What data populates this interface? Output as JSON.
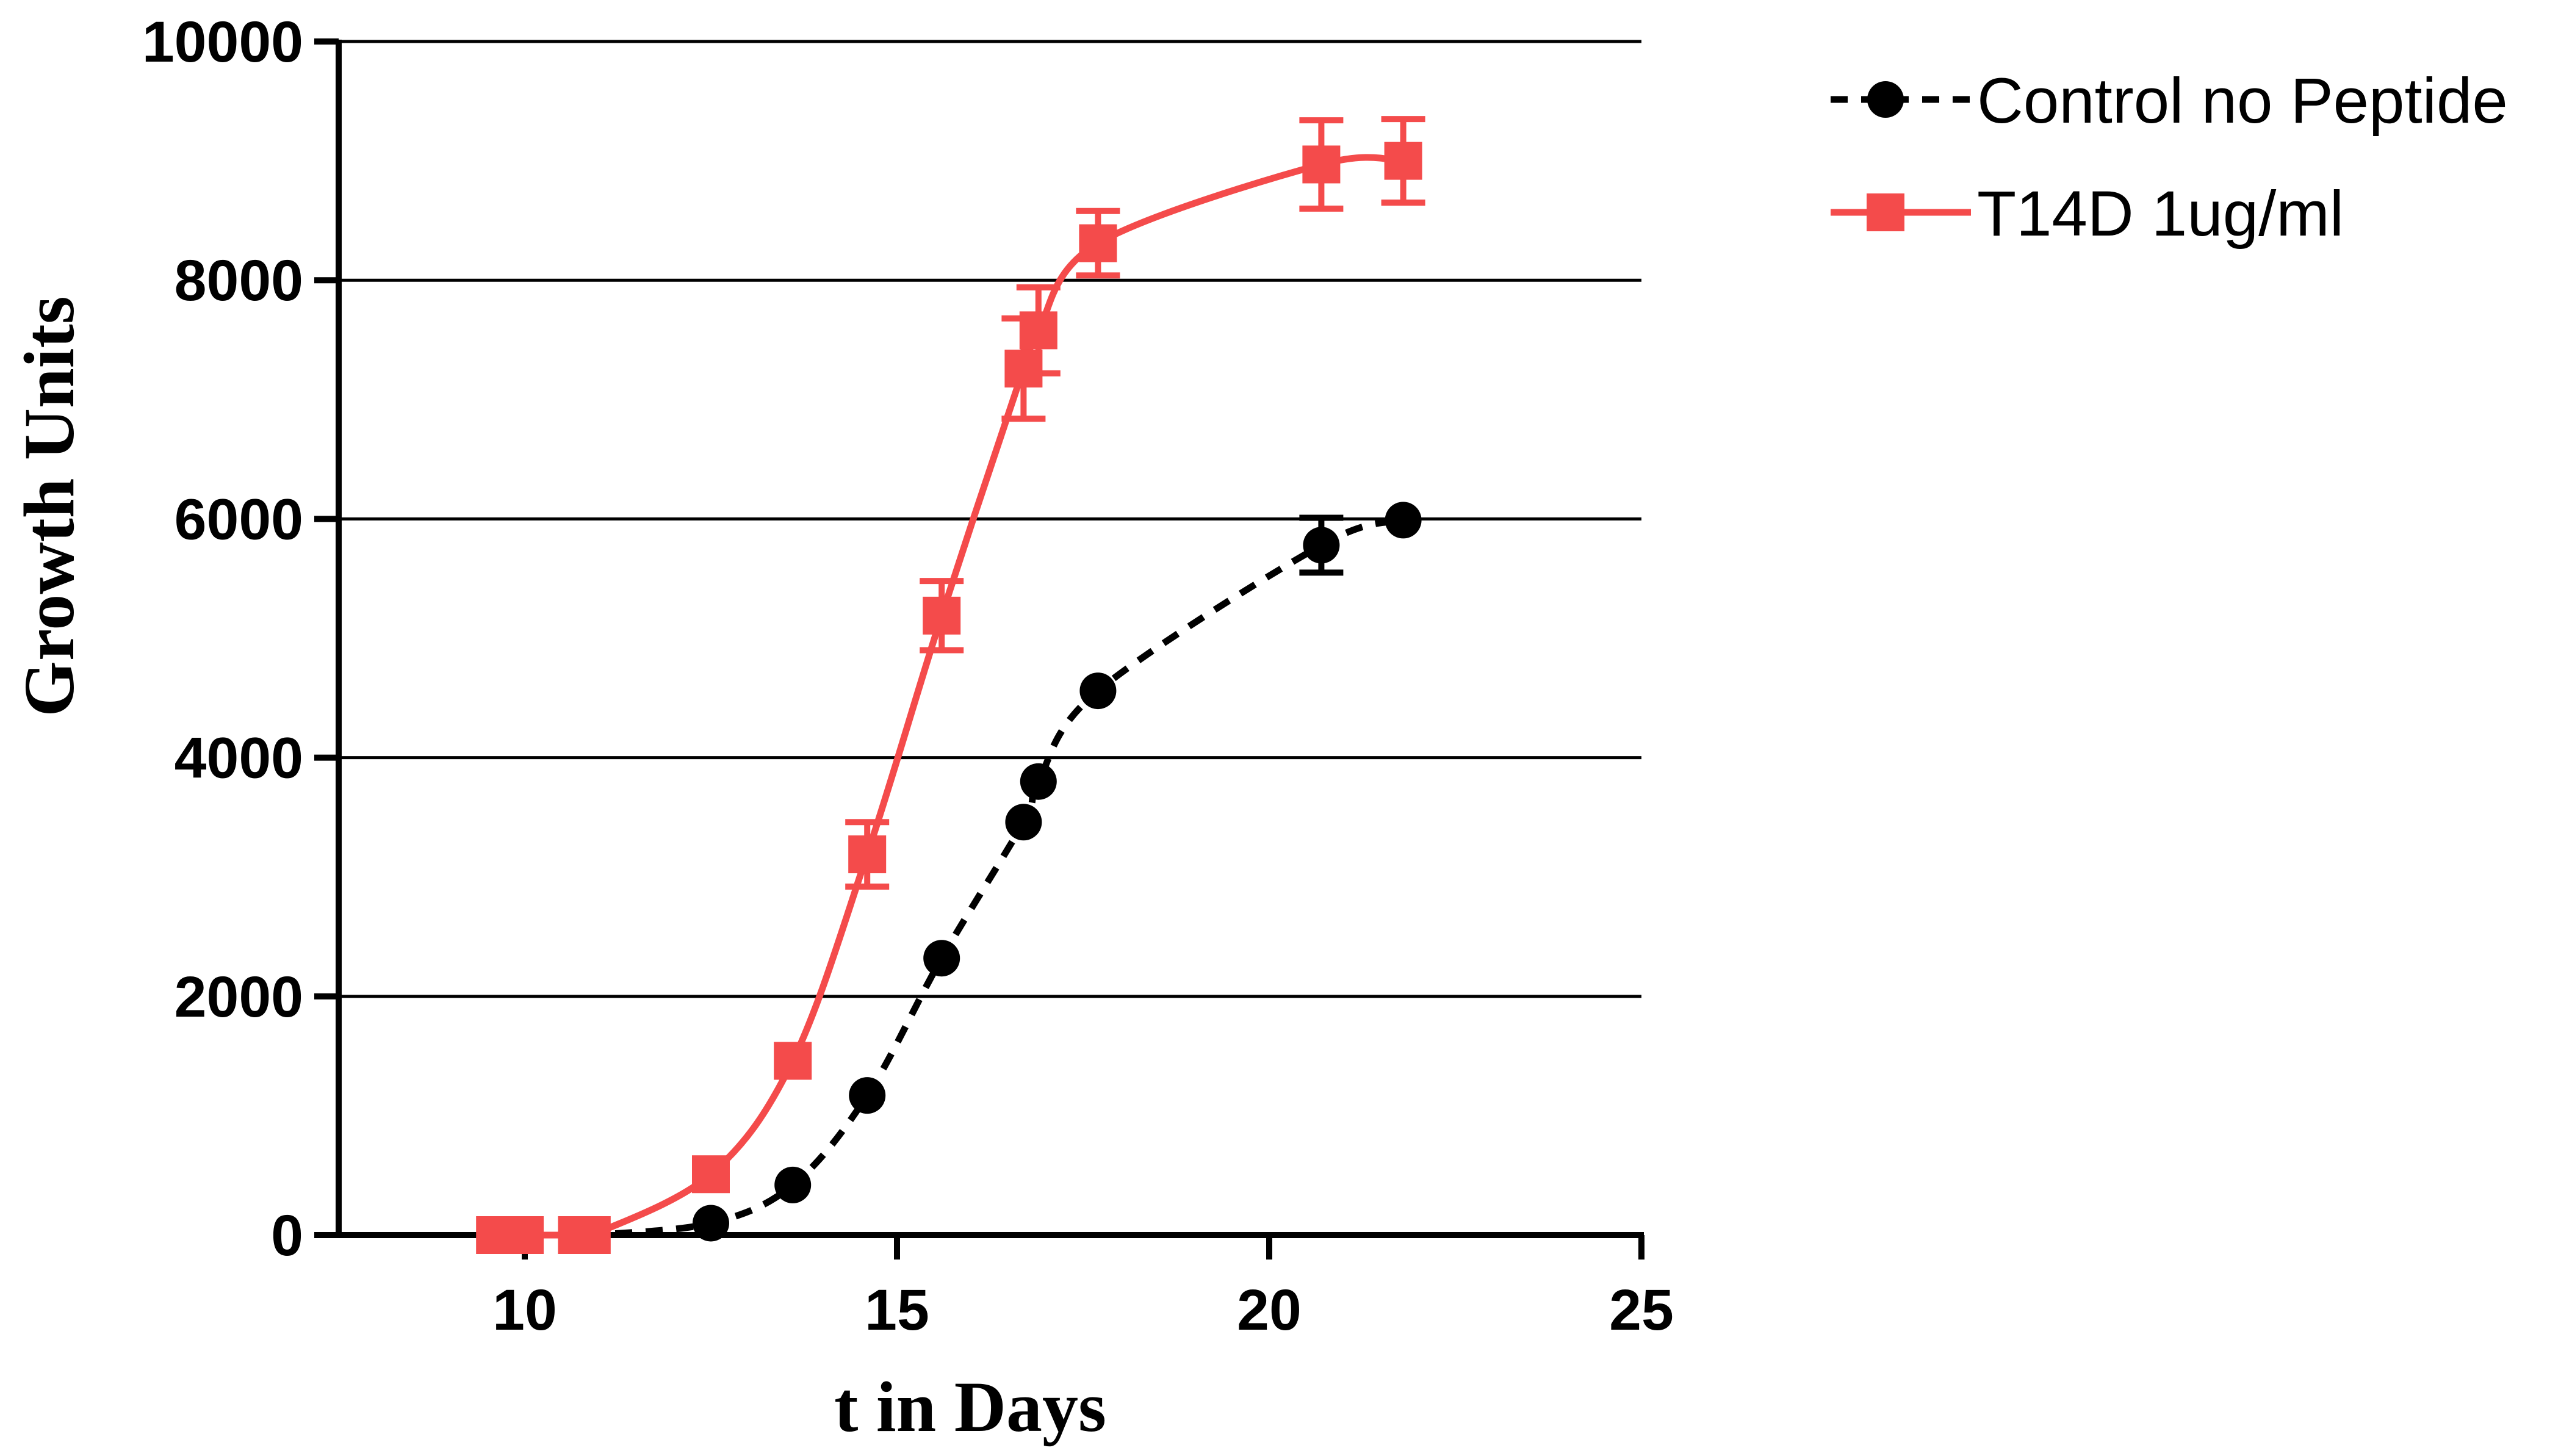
{
  "chart_data": {
    "type": "line",
    "title": "",
    "xlabel": "t in Days",
    "ylabel": "Growth Units",
    "xlim": [
      7.5,
      25
    ],
    "ylim": [
      0,
      10000
    ],
    "xticks": [
      10,
      15,
      20,
      25
    ],
    "yticks": [
      0,
      2000,
      4000,
      6000,
      8000,
      10000
    ],
    "grid": "horizontal",
    "legend_position": "top-right",
    "colors": {
      "axis": "#000000",
      "grid": "#000000"
    },
    "series": [
      {
        "name": "Control no Peptide",
        "color": "#000000",
        "marker": "circle",
        "line_style": "dashed",
        "x": [
          9.6,
          10.0,
          10.7,
          10.9,
          12.5,
          13.6,
          14.6,
          15.6,
          16.7,
          16.9,
          17.7,
          20.7,
          21.8
        ],
        "y": [
          0,
          0,
          0,
          0,
          100,
          420,
          1170,
          2320,
          3460,
          3800,
          4560,
          5780,
          5990
        ],
        "error": [
          0,
          0,
          0,
          0,
          0,
          0,
          0,
          0,
          0,
          0,
          0,
          230,
          0
        ]
      },
      {
        "name": "T14D 1ug/ml",
        "color": "#f44b4b",
        "marker": "square",
        "line_style": "solid",
        "x": [
          9.6,
          10.0,
          10.7,
          10.9,
          12.5,
          13.6,
          14.6,
          15.6,
          16.7,
          16.9,
          17.7,
          20.7,
          21.8
        ],
        "y": [
          0,
          0,
          0,
          0,
          510,
          1460,
          3190,
          5190,
          7260,
          7580,
          8310,
          8970,
          9000
        ],
        "error": [
          0,
          0,
          0,
          0,
          0,
          0,
          270,
          290,
          420,
          360,
          270,
          370,
          350
        ]
      }
    ]
  }
}
